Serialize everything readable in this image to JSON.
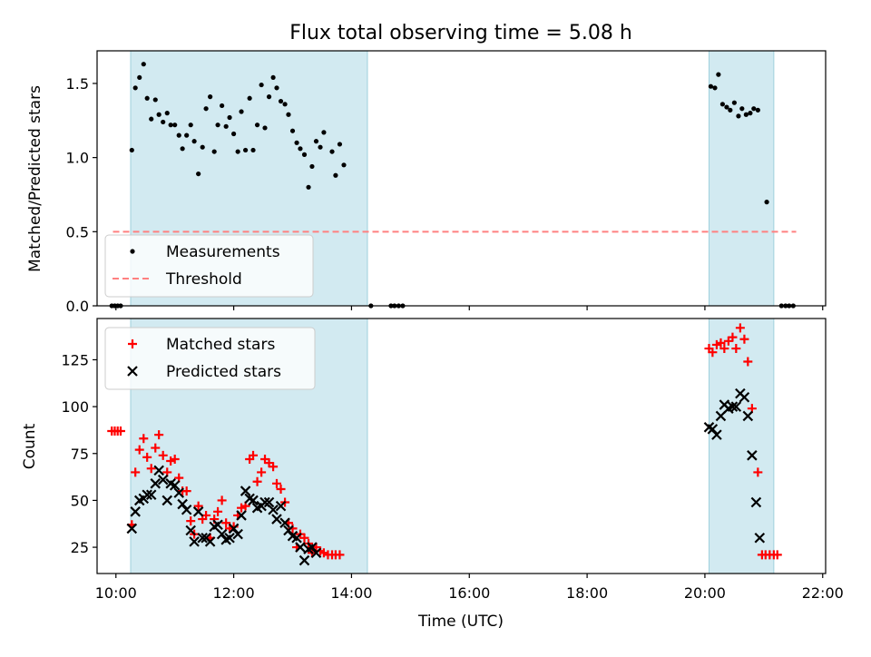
{
  "title": "Flux total observing time = 5.08 h",
  "chart_data": [
    {
      "type": "scatter",
      "ylabel": "Matched/Predicted stars",
      "xlabel": "",
      "xlim": [
        9.68,
        22.05
      ],
      "ylim": [
        0,
        1.72
      ],
      "yticks": [
        0.0,
        0.5,
        1.0,
        1.5
      ],
      "ytick_labels": [
        "0.0",
        "0.5",
        "1.0",
        "1.5"
      ],
      "xticks": [
        10,
        12,
        14,
        16,
        18,
        20,
        22
      ],
      "shaded_intervals": [
        [
          10.25,
          14.27
        ],
        [
          20.07,
          21.17
        ]
      ],
      "threshold": {
        "y": 0.5,
        "x_from": 9.95,
        "x_to": 21.55
      },
      "legend": {
        "position": "lower-left",
        "entries": [
          {
            "label": "Measurements",
            "marker": "dot",
            "color": "#000000"
          },
          {
            "label": "Threshold",
            "marker": "dashed-line",
            "color": "#ff8080"
          }
        ]
      },
      "series": [
        {
          "name": "Measurements",
          "color": "#000000",
          "points": [
            [
              9.93,
              0
            ],
            [
              9.98,
              0
            ],
            [
              10.03,
              0
            ],
            [
              10.08,
              0
            ],
            [
              10.27,
              1.05
            ],
            [
              10.33,
              1.47
            ],
            [
              10.4,
              1.54
            ],
            [
              10.47,
              1.63
            ],
            [
              10.53,
              1.4
            ],
            [
              10.6,
              1.26
            ],
            [
              10.67,
              1.39
            ],
            [
              10.73,
              1.29
            ],
            [
              10.8,
              1.24
            ],
            [
              10.87,
              1.3
            ],
            [
              10.93,
              1.22
            ],
            [
              11.0,
              1.22
            ],
            [
              11.07,
              1.15
            ],
            [
              11.13,
              1.06
            ],
            [
              11.2,
              1.15
            ],
            [
              11.27,
              1.22
            ],
            [
              11.33,
              1.11
            ],
            [
              11.4,
              0.89
            ],
            [
              11.47,
              1.07
            ],
            [
              11.53,
              1.33
            ],
            [
              11.6,
              1.41
            ],
            [
              11.67,
              1.04
            ],
            [
              11.73,
              1.22
            ],
            [
              11.8,
              1.35
            ],
            [
              11.87,
              1.21
            ],
            [
              11.93,
              1.27
            ],
            [
              12.0,
              1.16
            ],
            [
              12.07,
              1.04
            ],
            [
              12.13,
              1.31
            ],
            [
              12.2,
              1.05
            ],
            [
              12.27,
              1.4
            ],
            [
              12.33,
              1.05
            ],
            [
              12.4,
              1.22
            ],
            [
              12.47,
              1.49
            ],
            [
              12.53,
              1.2
            ],
            [
              12.6,
              1.41
            ],
            [
              12.67,
              1.54
            ],
            [
              12.73,
              1.47
            ],
            [
              12.8,
              1.38
            ],
            [
              12.87,
              1.36
            ],
            [
              12.93,
              1.29
            ],
            [
              13.0,
              1.18
            ],
            [
              13.07,
              1.1
            ],
            [
              13.13,
              1.06
            ],
            [
              13.2,
              1.02
            ],
            [
              13.27,
              0.8
            ],
            [
              13.33,
              0.94
            ],
            [
              13.4,
              1.11
            ],
            [
              13.47,
              1.07
            ],
            [
              13.53,
              1.17
            ],
            [
              13.67,
              1.04
            ],
            [
              13.73,
              0.88
            ],
            [
              13.8,
              1.09
            ],
            [
              13.87,
              0.95
            ],
            [
              14.33,
              0
            ],
            [
              14.67,
              0
            ],
            [
              14.73,
              0
            ],
            [
              14.8,
              0
            ],
            [
              14.87,
              0
            ],
            [
              20.1,
              1.48
            ],
            [
              20.17,
              1.47
            ],
            [
              20.23,
              1.56
            ],
            [
              20.3,
              1.36
            ],
            [
              20.37,
              1.34
            ],
            [
              20.43,
              1.32
            ],
            [
              20.5,
              1.37
            ],
            [
              20.57,
              1.28
            ],
            [
              20.63,
              1.33
            ],
            [
              20.7,
              1.29
            ],
            [
              20.77,
              1.3
            ],
            [
              20.83,
              1.33
            ],
            [
              20.9,
              1.32
            ],
            [
              21.05,
              0.7
            ],
            [
              21.3,
              0
            ],
            [
              21.37,
              0
            ],
            [
              21.43,
              0
            ],
            [
              21.5,
              0
            ]
          ]
        }
      ]
    },
    {
      "type": "scatter",
      "ylabel": "Count",
      "xlabel": "Time (UTC)",
      "xlim": [
        9.68,
        22.05
      ],
      "ylim": [
        11,
        147
      ],
      "yticks": [
        25,
        50,
        75,
        100,
        125
      ],
      "ytick_labels": [
        "25",
        "50",
        "75",
        "100",
        "125"
      ],
      "xticks": [
        10,
        12,
        14,
        16,
        18,
        20,
        22
      ],
      "xtick_labels": [
        "10:00",
        "12:00",
        "14:00",
        "16:00",
        "18:00",
        "20:00",
        "22:00"
      ],
      "shaded_intervals": [
        [
          10.25,
          14.27
        ],
        [
          20.07,
          21.17
        ]
      ],
      "legend": {
        "position": "top-left",
        "entries": [
          {
            "label": "Matched stars",
            "marker": "plus",
            "color": "#ff0000"
          },
          {
            "label": "Predicted stars",
            "marker": "x",
            "color": "#000000"
          }
        ]
      },
      "series": [
        {
          "name": "Matched stars",
          "color": "#ff0000",
          "marker": "plus",
          "points": [
            [
              9.93,
              87
            ],
            [
              9.98,
              87
            ],
            [
              10.03,
              87
            ],
            [
              10.08,
              87
            ],
            [
              10.27,
              37
            ],
            [
              10.33,
              65
            ],
            [
              10.4,
              77
            ],
            [
              10.47,
              83
            ],
            [
              10.53,
              73
            ],
            [
              10.6,
              67
            ],
            [
              10.67,
              78
            ],
            [
              10.73,
              85
            ],
            [
              10.8,
              74
            ],
            [
              10.87,
              65
            ],
            [
              10.93,
              71
            ],
            [
              11.0,
              72
            ],
            [
              11.07,
              62
            ],
            [
              11.13,
              55
            ],
            [
              11.2,
              55
            ],
            [
              11.27,
              39
            ],
            [
              11.33,
              32
            ],
            [
              11.4,
              47
            ],
            [
              11.47,
              40
            ],
            [
              11.53,
              42
            ],
            [
              11.6,
              30
            ],
            [
              11.67,
              40
            ],
            [
              11.73,
              44
            ],
            [
              11.8,
              50
            ],
            [
              11.87,
              38
            ],
            [
              11.93,
              35
            ],
            [
              12.0,
              36
            ],
            [
              12.07,
              42
            ],
            [
              12.13,
              46
            ],
            [
              12.2,
              47
            ],
            [
              12.27,
              72
            ],
            [
              12.33,
              74
            ],
            [
              12.4,
              60
            ],
            [
              12.47,
              65
            ],
            [
              12.53,
              72
            ],
            [
              12.6,
              70
            ],
            [
              12.67,
              68
            ],
            [
              12.73,
              59
            ],
            [
              12.8,
              56
            ],
            [
              12.87,
              49
            ],
            [
              12.93,
              38
            ],
            [
              13.0,
              35
            ],
            [
              13.07,
              25
            ],
            [
              13.13,
              32
            ],
            [
              13.2,
              30
            ],
            [
              13.27,
              27
            ],
            [
              13.33,
              22
            ],
            [
              13.4,
              25
            ],
            [
              13.47,
              23
            ],
            [
              13.53,
              22
            ],
            [
              13.6,
              21
            ],
            [
              13.67,
              21
            ],
            [
              13.73,
              21
            ],
            [
              13.8,
              21
            ],
            [
              20.07,
              131
            ],
            [
              20.13,
              129
            ],
            [
              20.2,
              133
            ],
            [
              20.27,
              134
            ],
            [
              20.33,
              131
            ],
            [
              20.4,
              135
            ],
            [
              20.47,
              137
            ],
            [
              20.53,
              131
            ],
            [
              20.6,
              142
            ],
            [
              20.67,
              136
            ],
            [
              20.73,
              124
            ],
            [
              20.8,
              99
            ],
            [
              20.9,
              65
            ],
            [
              20.97,
              21
            ],
            [
              21.03,
              21
            ],
            [
              21.1,
              21
            ],
            [
              21.17,
              21
            ],
            [
              21.23,
              21
            ]
          ]
        },
        {
          "name": "Predicted stars",
          "color": "#000000",
          "marker": "x",
          "points": [
            [
              10.27,
              35
            ],
            [
              10.33,
              44
            ],
            [
              10.4,
              50
            ],
            [
              10.47,
              51
            ],
            [
              10.53,
              53
            ],
            [
              10.6,
              53
            ],
            [
              10.67,
              59
            ],
            [
              10.73,
              66
            ],
            [
              10.8,
              61
            ],
            [
              10.87,
              50
            ],
            [
              10.93,
              59
            ],
            [
              11.0,
              58
            ],
            [
              11.07,
              54
            ],
            [
              11.13,
              48
            ],
            [
              11.2,
              45
            ],
            [
              11.27,
              34
            ],
            [
              11.33,
              28
            ],
            [
              11.4,
              44
            ],
            [
              11.47,
              30
            ],
            [
              11.53,
              30
            ],
            [
              11.6,
              28
            ],
            [
              11.67,
              36
            ],
            [
              11.73,
              37
            ],
            [
              11.8,
              32
            ],
            [
              11.87,
              29
            ],
            [
              11.93,
              30
            ],
            [
              12.0,
              35
            ],
            [
              12.07,
              32
            ],
            [
              12.13,
              42
            ],
            [
              12.2,
              55
            ],
            [
              12.27,
              51
            ],
            [
              12.33,
              50
            ],
            [
              12.4,
              46
            ],
            [
              12.47,
              47
            ],
            [
              12.53,
              49
            ],
            [
              12.6,
              49
            ],
            [
              12.67,
              45
            ],
            [
              12.73,
              40
            ],
            [
              12.8,
              47
            ],
            [
              12.87,
              38
            ],
            [
              12.93,
              34
            ],
            [
              13.0,
              31
            ],
            [
              13.07,
              30
            ],
            [
              13.13,
              25
            ],
            [
              13.2,
              18
            ],
            [
              13.27,
              24
            ],
            [
              13.33,
              25
            ],
            [
              13.4,
              22
            ],
            [
              20.07,
              89
            ],
            [
              20.13,
              88
            ],
            [
              20.2,
              85
            ],
            [
              20.27,
              95
            ],
            [
              20.33,
              101
            ],
            [
              20.4,
              99
            ],
            [
              20.47,
              100
            ],
            [
              20.53,
              100
            ],
            [
              20.6,
              107
            ],
            [
              20.67,
              105
            ],
            [
              20.73,
              95
            ],
            [
              20.8,
              74
            ],
            [
              20.87,
              49
            ],
            [
              20.93,
              30
            ]
          ]
        }
      ]
    }
  ]
}
